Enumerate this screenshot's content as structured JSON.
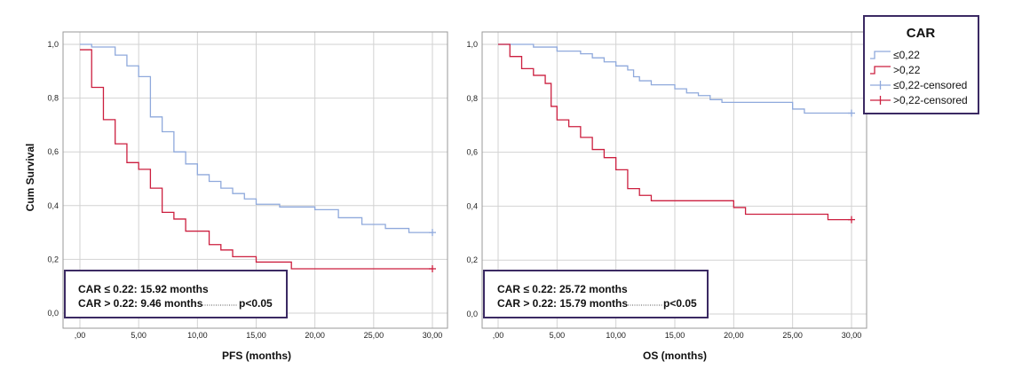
{
  "colors": {
    "low": "#8fa9dc",
    "high": "#cc1f3f",
    "grid": "#d2d2d2",
    "box_border": "#3b2a63"
  },
  "legend": {
    "title": "CAR",
    "items": [
      {
        "label": "≤0,22",
        "kind": "line",
        "series": "low"
      },
      {
        "label": ">0,22",
        "kind": "line",
        "series": "high"
      },
      {
        "label": "≤0,22-censored",
        "kind": "censor",
        "series": "low"
      },
      {
        "label": ">0,22-censored",
        "kind": "censor",
        "series": "high"
      }
    ]
  },
  "chart_data": [
    {
      "type": "line",
      "subtype": "kaplan-meier",
      "xlabel": "PFS (months)",
      "ylabel": "Cum Survival",
      "xlim": [
        0,
        30
      ],
      "ylim": [
        0,
        1
      ],
      "x_ticks": [
        0,
        5,
        10,
        15,
        20,
        25,
        30
      ],
      "x_tick_labels": [
        ",00",
        "5,00",
        "10,00",
        "15,00",
        "20,00",
        "25,00",
        "30,00"
      ],
      "y_ticks": [
        0,
        0.2,
        0.4,
        0.6,
        0.8,
        1.0
      ],
      "y_tick_labels": [
        "0,0",
        "0,2",
        "0,4",
        "0,6",
        "0,8",
        "1,0"
      ],
      "grid": true,
      "annotation": {
        "line1": "CAR ≤ 0.22: 15.92 months",
        "line2": "CAR > 0.22: 9.46 months",
        "pvalue": "p<0.05"
      },
      "series": [
        {
          "name": "≤0,22",
          "color_key": "low",
          "steps": [
            [
              0,
              1.0
            ],
            [
              1,
              0.99
            ],
            [
              3,
              0.96
            ],
            [
              4,
              0.92
            ],
            [
              5,
              0.88
            ],
            [
              6,
              0.73
            ],
            [
              7,
              0.675
            ],
            [
              8,
              0.6
            ],
            [
              9,
              0.555
            ],
            [
              10,
              0.515
            ],
            [
              11,
              0.49
            ],
            [
              12,
              0.465
            ],
            [
              13,
              0.445
            ],
            [
              14,
              0.425
            ],
            [
              15,
              0.405
            ],
            [
              17,
              0.395
            ],
            [
              20,
              0.385
            ],
            [
              22,
              0.355
            ],
            [
              24,
              0.33
            ],
            [
              26,
              0.315
            ],
            [
              28,
              0.3
            ],
            [
              30,
              0.3
            ]
          ],
          "censored": [
            [
              30,
              0.3
            ]
          ]
        },
        {
          "name": ">0,22",
          "color_key": "high",
          "steps": [
            [
              0,
              0.98
            ],
            [
              1,
              0.84
            ],
            [
              2,
              0.72
            ],
            [
              3,
              0.63
            ],
            [
              4,
              0.56
            ],
            [
              5,
              0.535
            ],
            [
              6,
              0.465
            ],
            [
              7,
              0.375
            ],
            [
              8,
              0.35
            ],
            [
              9,
              0.305
            ],
            [
              11,
              0.255
            ],
            [
              12,
              0.235
            ],
            [
              13,
              0.21
            ],
            [
              15,
              0.19
            ],
            [
              18,
              0.165
            ],
            [
              30,
              0.165
            ]
          ],
          "censored": [
            [
              30,
              0.165
            ]
          ]
        }
      ]
    },
    {
      "type": "line",
      "subtype": "kaplan-meier",
      "xlabel": "OS (months)",
      "ylabel": "",
      "xlim": [
        0,
        30
      ],
      "ylim": [
        0,
        1
      ],
      "x_ticks": [
        0,
        5,
        10,
        15,
        20,
        25,
        30
      ],
      "x_tick_labels": [
        ",00",
        "5,00",
        "10,00",
        "15,00",
        "20,00",
        "25,00",
        "30,00"
      ],
      "y_ticks": [
        0,
        0.2,
        0.4,
        0.6,
        0.8,
        1.0
      ],
      "y_tick_labels": [
        "0,0",
        "0,2",
        "0,4",
        "0,6",
        "0,8",
        "1,0"
      ],
      "grid": true,
      "annotation": {
        "line1": "CAR ≤ 0.22: 25.72 months",
        "line2": "CAR > 0.22: 15.79 months",
        "pvalue": "p<0.05"
      },
      "series": [
        {
          "name": "≤0,22",
          "color_key": "low",
          "steps": [
            [
              0,
              1.0
            ],
            [
              3,
              0.99
            ],
            [
              5,
              0.975
            ],
            [
              7,
              0.965
            ],
            [
              8,
              0.95
            ],
            [
              9,
              0.935
            ],
            [
              10,
              0.92
            ],
            [
              11,
              0.905
            ],
            [
              11.5,
              0.88
            ],
            [
              12,
              0.865
            ],
            [
              13,
              0.85
            ],
            [
              15,
              0.835
            ],
            [
              16,
              0.82
            ],
            [
              17,
              0.81
            ],
            [
              18,
              0.795
            ],
            [
              19,
              0.785
            ],
            [
              25,
              0.76
            ],
            [
              26,
              0.745
            ],
            [
              30,
              0.745
            ]
          ],
          "censored": [
            [
              30,
              0.745
            ]
          ]
        },
        {
          "name": ">0,22",
          "color_key": "high",
          "steps": [
            [
              0,
              1.0
            ],
            [
              1,
              0.955
            ],
            [
              2,
              0.91
            ],
            [
              3,
              0.885
            ],
            [
              4,
              0.855
            ],
            [
              4.5,
              0.77
            ],
            [
              5,
              0.72
            ],
            [
              6,
              0.695
            ],
            [
              7,
              0.655
            ],
            [
              8,
              0.61
            ],
            [
              9,
              0.58
            ],
            [
              10,
              0.535
            ],
            [
              11,
              0.465
            ],
            [
              12,
              0.44
            ],
            [
              13,
              0.42
            ],
            [
              20,
              0.395
            ],
            [
              21,
              0.37
            ],
            [
              28,
              0.35
            ],
            [
              30,
              0.35
            ]
          ],
          "censored": [
            [
              30,
              0.35
            ]
          ]
        }
      ]
    }
  ]
}
